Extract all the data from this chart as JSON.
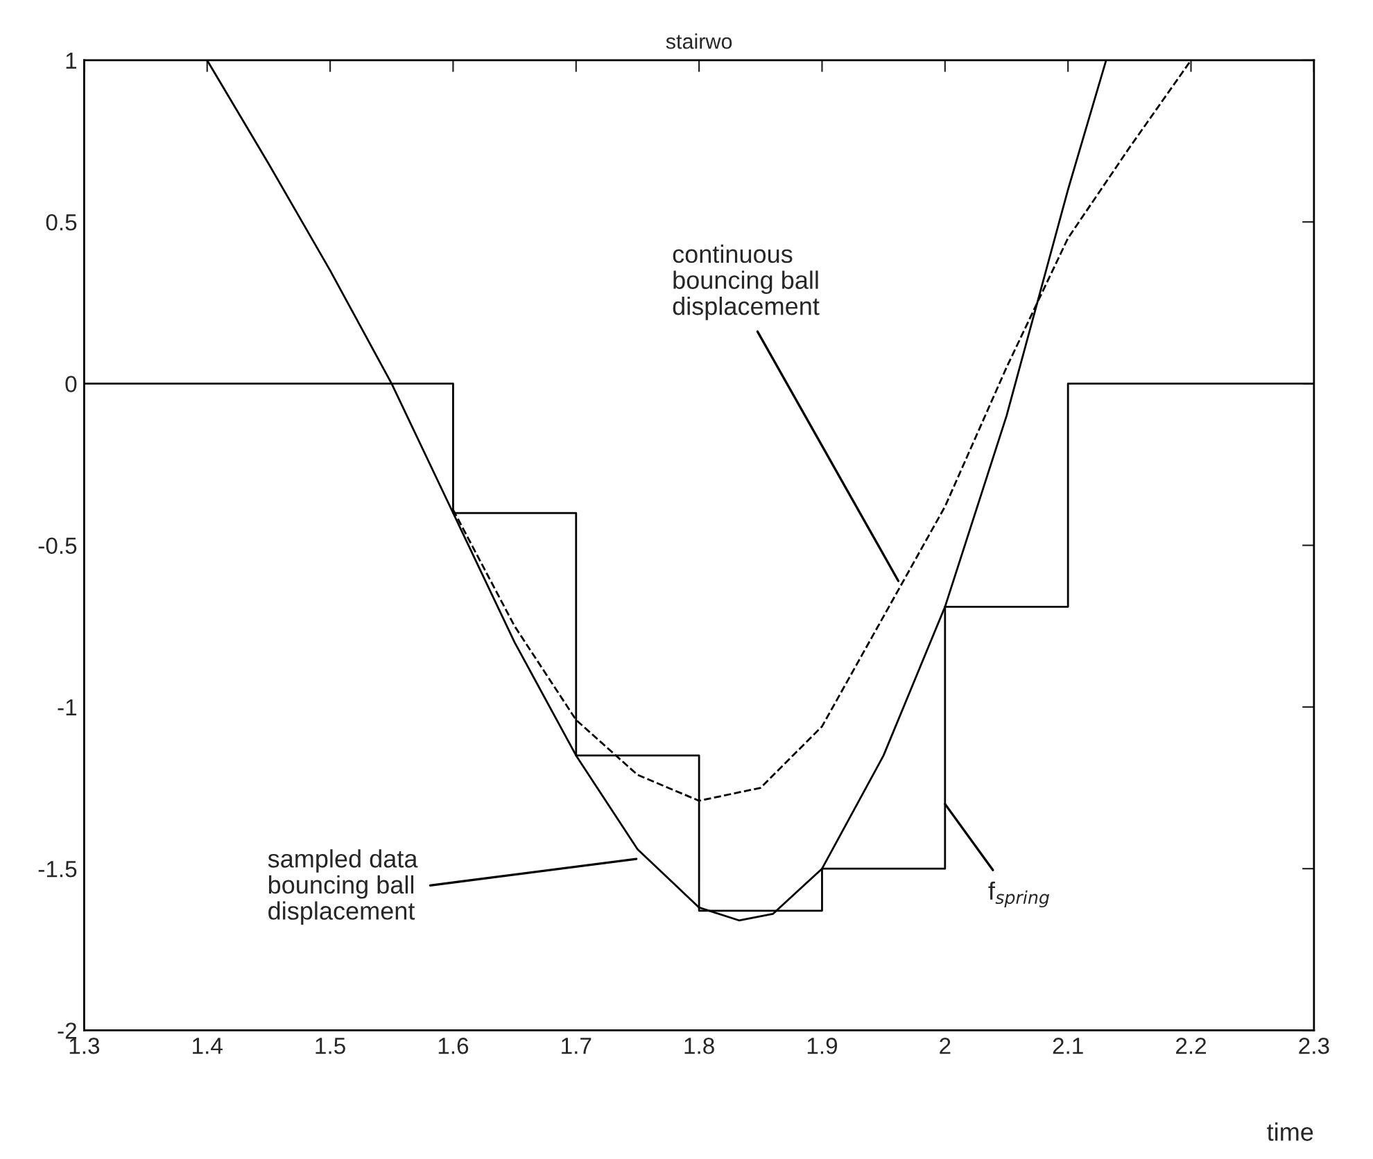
{
  "chart_data": {
    "type": "line",
    "title": "stairwo",
    "xlabel": "time",
    "xlim": [
      1.3,
      2.3
    ],
    "xticks": [
      1.3,
      1.4,
      1.5,
      1.6,
      1.7,
      1.8,
      1.9,
      2,
      2.1,
      2.2,
      2.3
    ],
    "ylim": [
      -2,
      1
    ],
    "yticks": [
      -2,
      -1.5,
      -1,
      -0.5,
      0,
      0.5,
      1
    ],
    "grid": false,
    "series": [
      {
        "type": "step",
        "color": "#000000",
        "line_style": "solid",
        "x": [
          1.3,
          1.6,
          1.7,
          1.8,
          1.9,
          2.0,
          2.1,
          2.3
        ],
        "values": [
          0,
          -0.4,
          -1.15,
          -1.63,
          -1.5,
          -0.69,
          0,
          0
        ]
      },
      {
        "color": "#000000",
        "line_style": "solid",
        "x": [
          1.4,
          1.45,
          1.5,
          1.55,
          1.6,
          1.65,
          1.7,
          1.75,
          1.8,
          1.8325,
          1.86,
          1.9,
          1.95,
          2.0,
          2.05,
          2.1,
          2.131
        ],
        "values": [
          1,
          0.68,
          0.35,
          0,
          -0.4,
          -0.8,
          -1.15,
          -1.44,
          -1.62,
          -1.66,
          -1.64,
          -1.5,
          -1.15,
          -0.69,
          -0.1,
          0.6,
          1
        ]
      },
      {
        "color": "#000000",
        "line_style": "dashed",
        "x": [
          1.6,
          1.65,
          1.7,
          1.75,
          1.8,
          1.85,
          1.9,
          1.95,
          2.0,
          2.05,
          2.1,
          2.15,
          2.2
        ],
        "values": [
          -0.39,
          -0.75,
          -1.04,
          -1.21,
          -1.29,
          -1.25,
          -1.06,
          -0.72,
          -0.38,
          0.05,
          0.45,
          0.73,
          1.0
        ]
      }
    ],
    "annotations": [
      {
        "text": "continuous\nbouncing ball\ndisplacement",
        "x": 1.962,
        "y": -0.61
      },
      {
        "text": "sampled data\nbouncing ball\ndisplacement",
        "x": 1.749,
        "y": -1.47
      },
      {
        "text": "f$_{spring}$",
        "x": 2.0,
        "y": -1.3
      }
    ]
  }
}
